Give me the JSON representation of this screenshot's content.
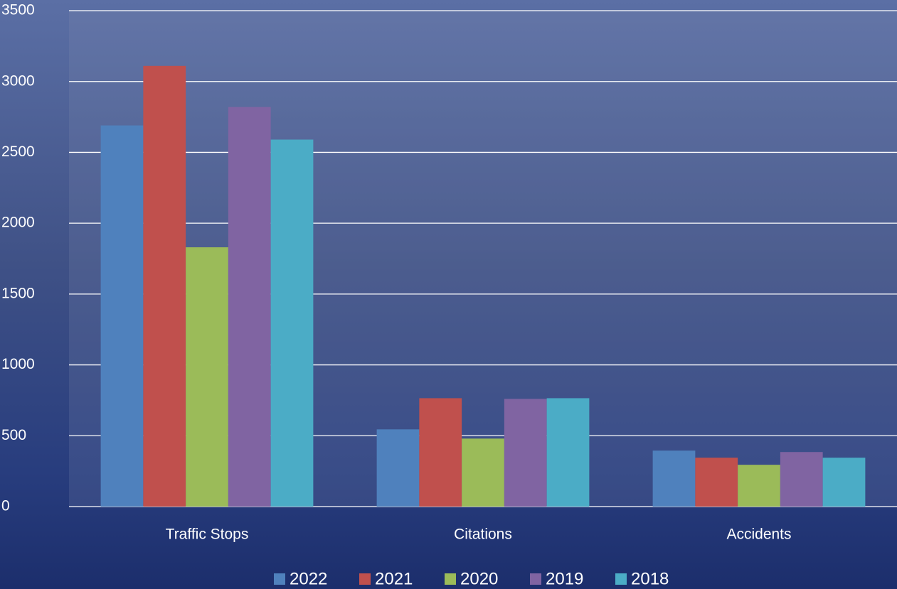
{
  "chart_data": {
    "type": "bar",
    "categories": [
      "Traffic Stops",
      "Citations",
      "Accidents"
    ],
    "series": [
      {
        "name": "2022",
        "color": "#4f81bd",
        "values": [
          2690,
          545,
          395
        ]
      },
      {
        "name": "2021",
        "color": "#c0504d",
        "values": [
          3110,
          765,
          345
        ]
      },
      {
        "name": "2020",
        "color": "#9bbb59",
        "values": [
          1830,
          480,
          295
        ]
      },
      {
        "name": "2019",
        "color": "#8064a2",
        "values": [
          2820,
          760,
          385
        ]
      },
      {
        "name": "2018",
        "color": "#4bacc6",
        "values": [
          2590,
          765,
          345
        ]
      }
    ],
    "ylim": [
      0,
      3500
    ],
    "yticks": [
      0,
      500,
      1000,
      1500,
      2000,
      2500,
      3000,
      3500
    ],
    "grid": true,
    "legend": "bottom"
  }
}
